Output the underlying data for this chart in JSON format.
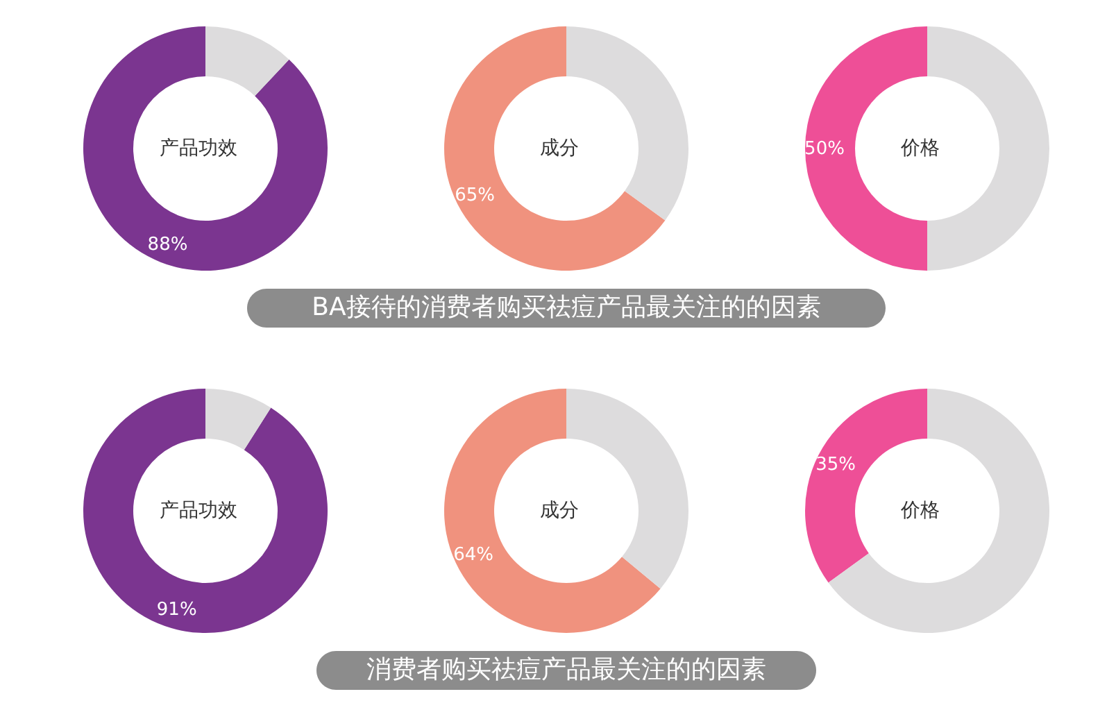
{
  "chart_data": [
    {
      "type": "donut",
      "categories": [
        "产品功效",
        null
      ],
      "values": [
        88,
        12
      ],
      "colors": [
        "#7b3590",
        "#dddcdd"
      ],
      "value_labels": [
        "88%",
        null
      ]
    },
    {
      "type": "donut",
      "categories": [
        "成分",
        null
      ],
      "values": [
        65,
        35
      ],
      "colors": [
        "#f0927e",
        "#dddcdd"
      ],
      "value_labels": [
        "65%",
        null
      ],
      "annotations": [
        "BA接待的消费者购买祛痘产品最关注的的因素"
      ]
    },
    {
      "type": "donut",
      "categories": [
        "价格",
        null
      ],
      "values": [
        50,
        50
      ],
      "colors": [
        "#ee4f97",
        "#dddcdd"
      ],
      "value_labels": [
        "50%",
        null
      ]
    },
    {
      "type": "donut",
      "categories": [
        "产品功效",
        null
      ],
      "values": [
        91,
        9
      ],
      "colors": [
        "#7b3590",
        "#dddcdd"
      ],
      "value_labels": [
        "91%",
        null
      ]
    },
    {
      "type": "donut",
      "categories": [
        "成分",
        null
      ],
      "values": [
        64,
        36
      ],
      "colors": [
        "#f0927e",
        "#dddcdd"
      ],
      "value_labels": [
        "64%",
        null
      ],
      "annotations": [
        "消费者购买祛痘产品最关注的的因素"
      ]
    },
    {
      "type": "donut",
      "categories": [
        "价格",
        null
      ],
      "values": [
        35,
        65
      ],
      "colors": [
        "#ee4f97",
        "#dddcdd"
      ],
      "value_labels": [
        "35%",
        null
      ]
    }
  ]
}
